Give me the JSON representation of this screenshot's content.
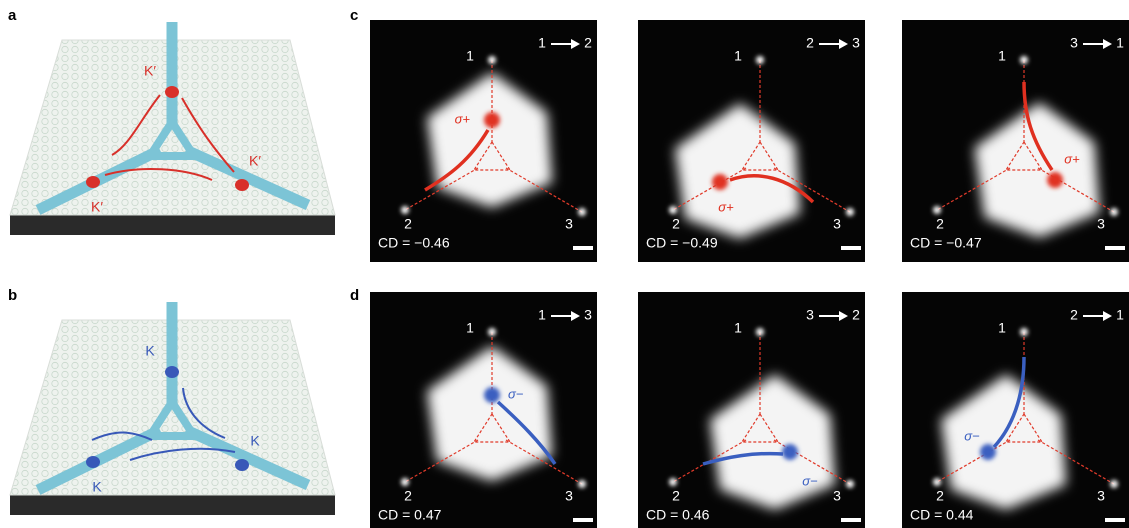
{
  "panel_labels": {
    "a": "a",
    "b": "b",
    "c": "c",
    "d": "d"
  },
  "device_a": {
    "valley_labels": [
      "K′",
      "K′",
      "K′"
    ]
  },
  "device_b": {
    "valley_labels": [
      "K",
      "K",
      "K"
    ]
  },
  "rows": [
    {
      "images": [
        {
          "from": "1",
          "to": "2",
          "ports": [
            "1",
            "2",
            "3"
          ],
          "polarization": "σ+",
          "cd": "CD = −0.46"
        },
        {
          "from": "2",
          "to": "3",
          "ports": [
            "1",
            "2",
            "3"
          ],
          "polarization": "σ+",
          "cd": "CD = −0.49"
        },
        {
          "from": "3",
          "to": "1",
          "ports": [
            "1",
            "2",
            "3"
          ],
          "polarization": "σ+",
          "cd": "CD = −0.47"
        }
      ]
    },
    {
      "images": [
        {
          "from": "1",
          "to": "3",
          "ports": [
            "1",
            "2",
            "3"
          ],
          "polarization": "σ−",
          "cd": "CD = 0.47"
        },
        {
          "from": "3",
          "to": "2",
          "ports": [
            "1",
            "2",
            "3"
          ],
          "polarization": "σ−",
          "cd": "CD = 0.46"
        },
        {
          "from": "2",
          "to": "1",
          "ports": [
            "1",
            "2",
            "3"
          ],
          "polarization": "σ−",
          "cd": "CD = 0.44"
        }
      ]
    }
  ]
}
